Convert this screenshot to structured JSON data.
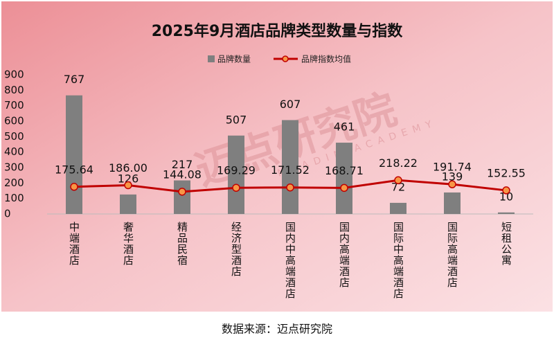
{
  "chart_data": {
    "type": "combo",
    "title": "2025年9月酒店品牌类型数量与指数",
    "categories": [
      "中端酒店",
      "奢华酒店",
      "精品民宿",
      "经济型酒店",
      "国内中高端酒店",
      "国内高端酒店",
      "国际中高端酒店",
      "国际高端酒店",
      "短租公寓"
    ],
    "series": [
      {
        "name": "品牌数量",
        "type": "bar",
        "color": "#7f7f7f",
        "values": [
          767,
          126,
          217,
          507,
          607,
          461,
          72,
          139,
          10
        ]
      },
      {
        "name": "品牌指数均值",
        "type": "line",
        "color": "#c00000",
        "marker_color": "#f79646",
        "values": [
          175.64,
          186,
          144.08,
          169.29,
          171.52,
          168.71,
          218.22,
          191.74,
          152.55
        ],
        "value_labels": [
          "175.64",
          "186.00",
          "144.08",
          "169.29",
          "171.52",
          "168.71",
          "218.22",
          "191.74",
          "152.55"
        ]
      }
    ],
    "ylim": [
      0,
      900
    ],
    "yticks": [
      0,
      100,
      200,
      300,
      400,
      500,
      600,
      700,
      800,
      900
    ],
    "legend": "top",
    "watermark": "迈点研究院",
    "watermark_sub": "MEADIN ACADEMY",
    "source": "数据来源：迈点研究院"
  }
}
